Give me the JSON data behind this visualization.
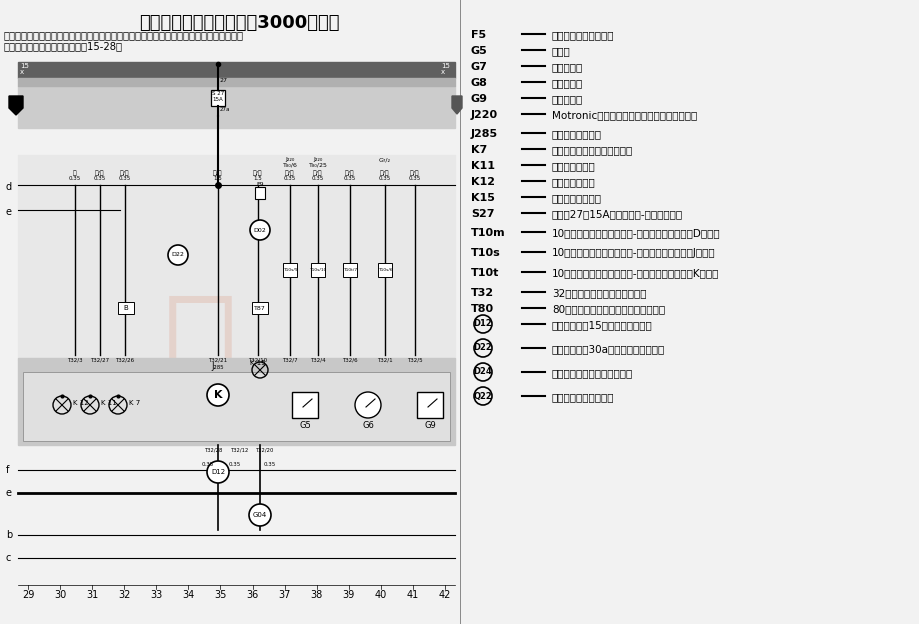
{
  "title": "基本电路电路图（桑塔纳3000轿车）",
  "subtitle_line1": "组合仪表控制单元、转速表、车速里程表、数字计程表、油压报警灯、行李箱开门警告灯、",
  "subtitle_line2": "手制动指示及制动液位警告灯（15-28）",
  "right_panel_items": [
    [
      "F5",
      "行李箱照明灯接触开关",
      false
    ],
    [
      "G5",
      "转速表",
      false
    ],
    [
      "G7",
      "车速传感器",
      false
    ],
    [
      "G8",
      "车速里程表",
      false
    ],
    [
      "G9",
      "数字计程表",
      false
    ],
    [
      "J220",
      "Motronic发动机控制单元，在空调进风罩右侧",
      false
    ],
    [
      "J285",
      "组合仪表控制单元",
      false
    ],
    [
      "K7",
      "手制动指示及制动液位警告灯",
      false
    ],
    [
      "K11",
      "油压低压报警灯",
      false
    ],
    [
      "K12",
      "油压高压报警灯",
      false
    ],
    [
      "K15",
      "行李箱开关警告灯",
      false
    ],
    [
      "S27",
      "保险丝27，15A，在继电器-保险丝支架上",
      false
    ],
    [
      "T10m",
      "10针插头，黑色，在继电器-保险丝支架顶面上（D号位）",
      false
    ],
    [
      "T10s",
      "10针插头，棕色，在继电器-保险丝支架顶面上（J号位）",
      false
    ],
    [
      "T10t",
      "10针插头，橙色，在继电器-保险丝支架顶面上（K号位）",
      false
    ],
    [
      "T32",
      "32针插头，蓝色，在组合仪表上",
      false
    ],
    [
      "T80",
      "80针插头，黑色，在发动机控制单元上",
      false
    ],
    [
      "D12",
      "正极连接线（15），在仪表线束内",
      true
    ],
    [
      "D22",
      "正极连接线（30a），在仪表板线束内",
      true
    ],
    [
      "D24",
      "接地连接线，在仪表板线束内",
      true
    ],
    [
      "Q22",
      "连接线，在车身线束内",
      true
    ]
  ],
  "bottom_numbers": [
    29,
    30,
    31,
    32,
    33,
    34,
    35,
    36,
    37,
    38,
    39,
    40,
    41,
    42
  ],
  "bg_color": "#f2f2f2",
  "diagram_bg": "#e0e0e0",
  "top_band_dark": "#606060",
  "top_band_light": "#b0b0b0"
}
